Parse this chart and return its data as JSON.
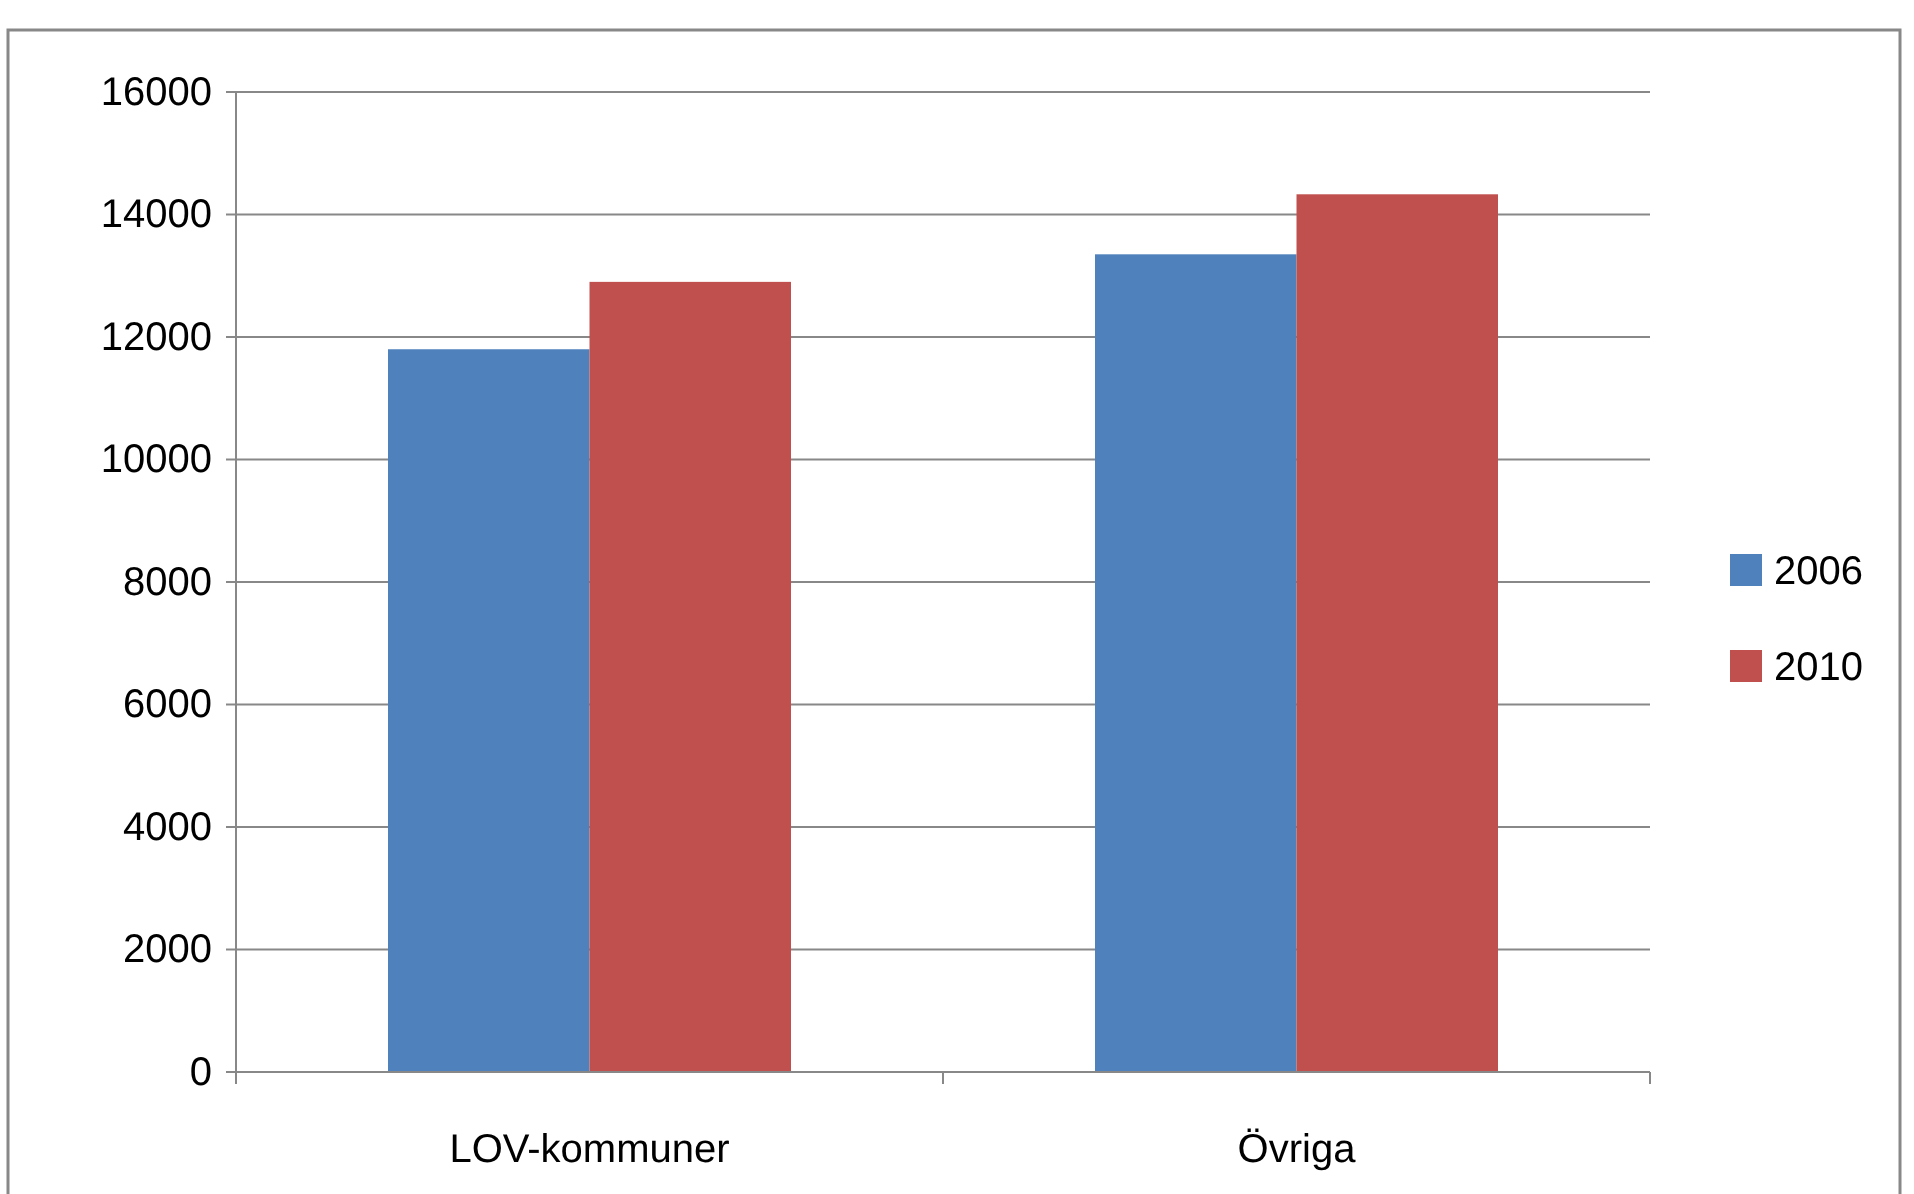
{
  "chart_data": {
    "type": "bar",
    "categories": [
      "LOV-kommuner",
      "Övriga"
    ],
    "series": [
      {
        "name": "2006",
        "color": "#4f81bd",
        "values": [
          11800,
          13350
        ]
      },
      {
        "name": "2010",
        "color": "#c0504d",
        "values": [
          12900,
          14330
        ]
      }
    ],
    "ylim": [
      0,
      16000
    ],
    "yticks": [
      0,
      2000,
      4000,
      6000,
      8000,
      10000,
      12000,
      14000,
      16000
    ],
    "grid": "y",
    "legend": "right"
  }
}
